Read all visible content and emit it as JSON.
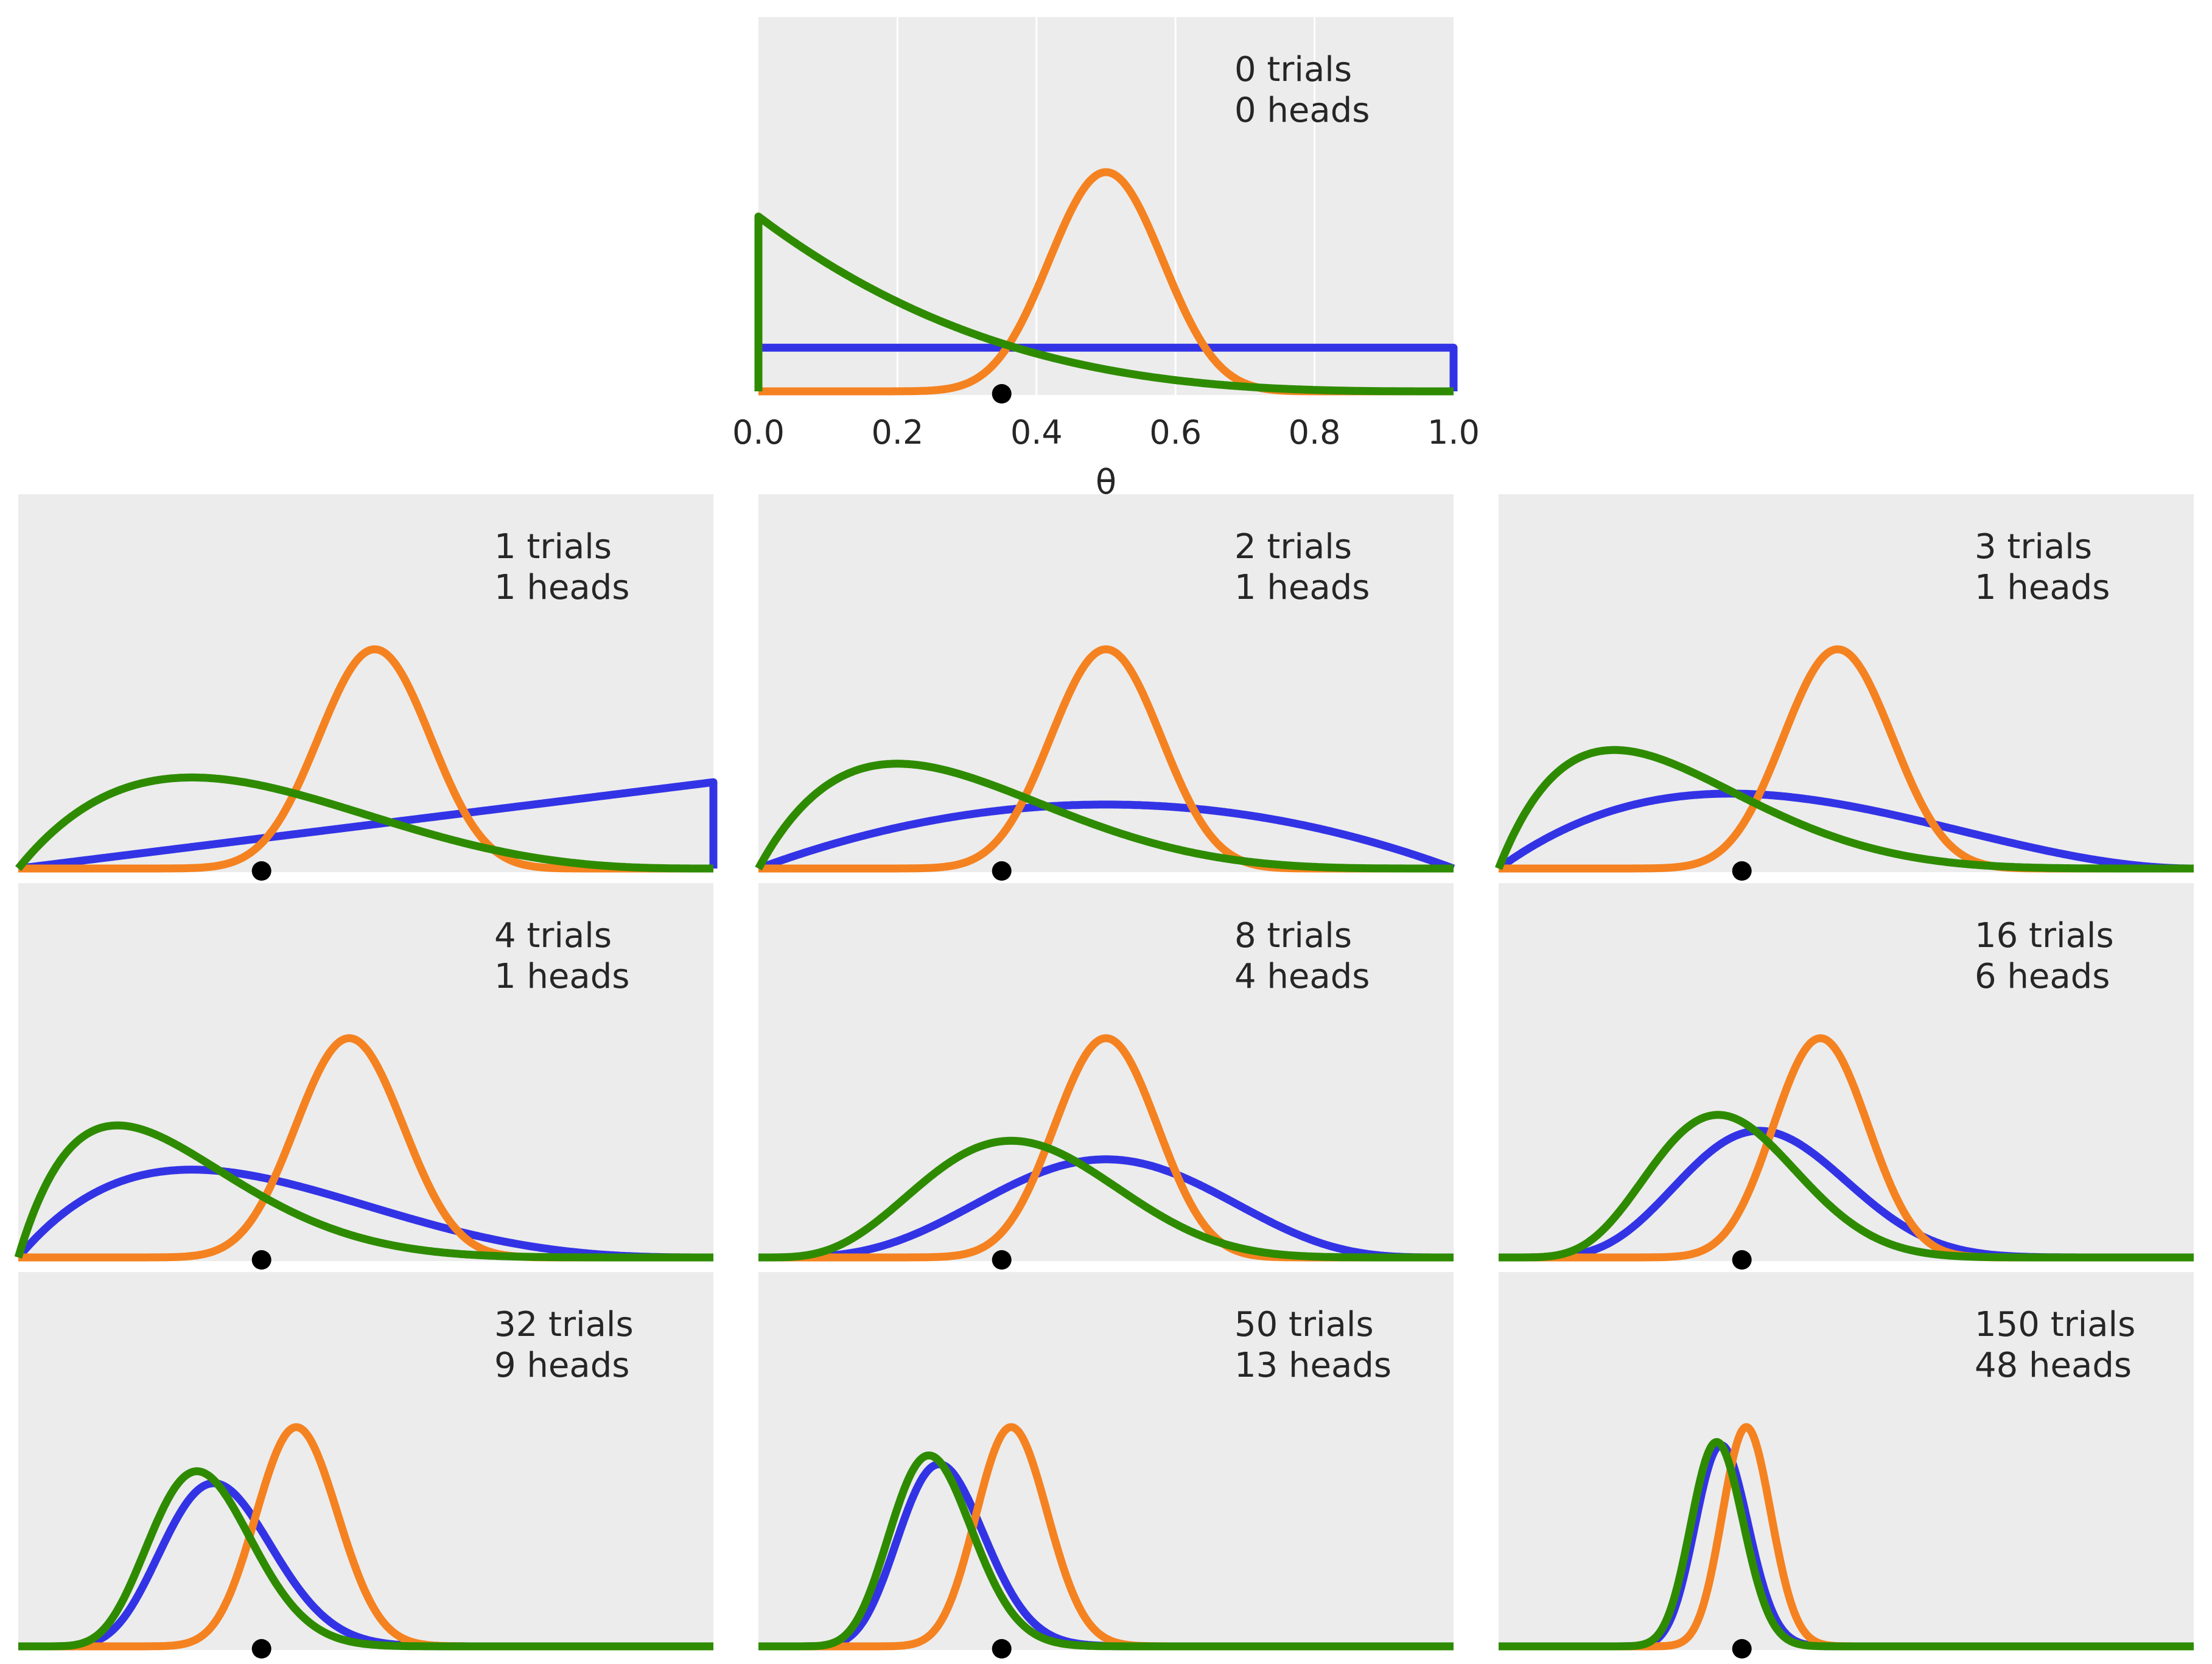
{
  "chart_data": {
    "type": "line",
    "x_range": [
      0.0,
      1.0
    ],
    "xlabel": "θ",
    "x_ticks": [
      "0.0",
      "0.2",
      "0.4",
      "0.6",
      "0.8",
      "1.0"
    ],
    "true_theta": 0.35,
    "grid": true,
    "priors": [
      {
        "beta": [
          1,
          1
        ],
        "color": "#3333e6",
        "shown_as": "uniform prior"
      },
      {
        "beta": [
          20,
          20
        ],
        "color": "#f58220",
        "shown_as": "concentrated prior"
      },
      {
        "beta": [
          1,
          4
        ],
        "color": "#2e8b00",
        "shown_as": "skewed prior"
      }
    ],
    "panels": [
      {
        "trials": 0,
        "heads": 0,
        "line1": "0 trials",
        "line2": "0 heads"
      },
      {
        "trials": 1,
        "heads": 1,
        "line1": "1 trials",
        "line2": "1 heads"
      },
      {
        "trials": 2,
        "heads": 1,
        "line1": "2 trials",
        "line2": "1 heads"
      },
      {
        "trials": 3,
        "heads": 1,
        "line1": "3 trials",
        "line2": "1 heads"
      },
      {
        "trials": 4,
        "heads": 1,
        "line1": "4 trials",
        "line2": "1 heads"
      },
      {
        "trials": 8,
        "heads": 4,
        "line1": "8 trials",
        "line2": "4 heads"
      },
      {
        "trials": 16,
        "heads": 6,
        "line1": "16 trials",
        "line2": "6 heads"
      },
      {
        "trials": 32,
        "heads": 9,
        "line1": "32 trials",
        "line2": "9 heads"
      },
      {
        "trials": 50,
        "heads": 13,
        "line1": "50 trials",
        "line2": "13 heads"
      },
      {
        "trials": 150,
        "heads": 48,
        "line1": "150 trials",
        "line2": "48 heads"
      }
    ],
    "colors": {
      "panel_bg": "#ececec",
      "grid": "#ffffff",
      "marker": "#000000",
      "text": "#262626"
    }
  }
}
